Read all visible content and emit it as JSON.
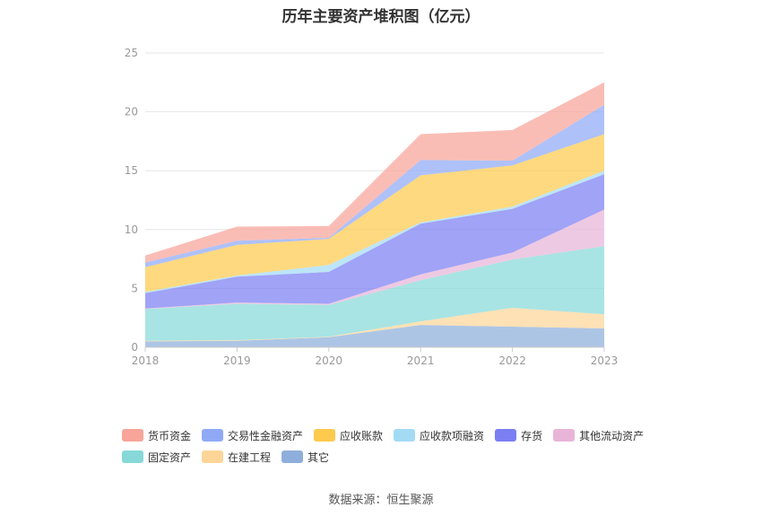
{
  "chart_data": {
    "type": "area",
    "stacked": true,
    "title": "历年主要资产堆积图（亿元）",
    "xlabel": "",
    "ylabel": "",
    "categories": [
      "2018",
      "2019",
      "2020",
      "2021",
      "2022",
      "2023"
    ],
    "ylim": [
      0,
      25
    ],
    "yticks": [
      0,
      5,
      10,
      15,
      20,
      25
    ],
    "grid": true,
    "legend_position": "bottom",
    "series": [
      {
        "name": "其它",
        "color": "#8eaedb",
        "values": [
          0.5,
          0.55,
          0.85,
          1.9,
          1.75,
          1.6
        ]
      },
      {
        "name": "在建工程",
        "color": "#fdd599",
        "values": [
          0.05,
          0.05,
          0.05,
          0.3,
          1.6,
          1.2
        ]
      },
      {
        "name": "固定资产",
        "color": "#86d9d8",
        "values": [
          2.7,
          3.1,
          2.7,
          3.5,
          4.1,
          5.8
        ]
      },
      {
        "name": "其他流动资产",
        "color": "#e8b4d8",
        "values": [
          0.05,
          0.1,
          0.1,
          0.5,
          0.6,
          3.1
        ]
      },
      {
        "name": "存货",
        "color": "#7b7ff2",
        "values": [
          1.3,
          2.2,
          2.7,
          4.3,
          3.7,
          3.0
        ]
      },
      {
        "name": "应收款项融资",
        "color": "#a3dbf5",
        "values": [
          0.1,
          0.1,
          0.6,
          0.1,
          0.2,
          0.3
        ]
      },
      {
        "name": "应收账款",
        "color": "#fdca4d",
        "values": [
          2.1,
          2.6,
          2.2,
          4.0,
          3.5,
          3.1
        ]
      },
      {
        "name": "交易性金融资产",
        "color": "#8fa9f7",
        "values": [
          0.4,
          0.35,
          0.1,
          1.3,
          0.4,
          2.5
        ]
      },
      {
        "name": "货币资金",
        "color": "#f8a49a",
        "values": [
          0.6,
          1.2,
          1.0,
          2.2,
          2.6,
          1.9
        ]
      }
    ]
  },
  "legend": {
    "rows": [
      [
        {
          "label": "货币资金",
          "color": "#f8a49a",
          "name": "legend-item-cash"
        },
        {
          "label": "交易性金融资产",
          "color": "#8fa9f7",
          "name": "legend-item-trading-assets"
        },
        {
          "label": "应收账款",
          "color": "#fdca4d",
          "name": "legend-item-receivables"
        },
        {
          "label": "应收款项融资",
          "color": "#a3dbf5",
          "name": "legend-item-receivables-financing"
        },
        {
          "label": "存货",
          "color": "#7b7ff2",
          "name": "legend-item-inventory"
        },
        {
          "label": "其他流动资产",
          "color": "#e8b4d8",
          "name": "legend-item-other-current-assets"
        }
      ],
      [
        {
          "label": "固定资产",
          "color": "#86d9d8",
          "name": "legend-item-fixed-assets"
        },
        {
          "label": "在建工程",
          "color": "#fdd599",
          "name": "legend-item-construction-in-progress"
        },
        {
          "label": "其它",
          "color": "#8eaedb",
          "name": "legend-item-other"
        }
      ]
    ]
  },
  "source_text": "数据来源：恒生聚源"
}
